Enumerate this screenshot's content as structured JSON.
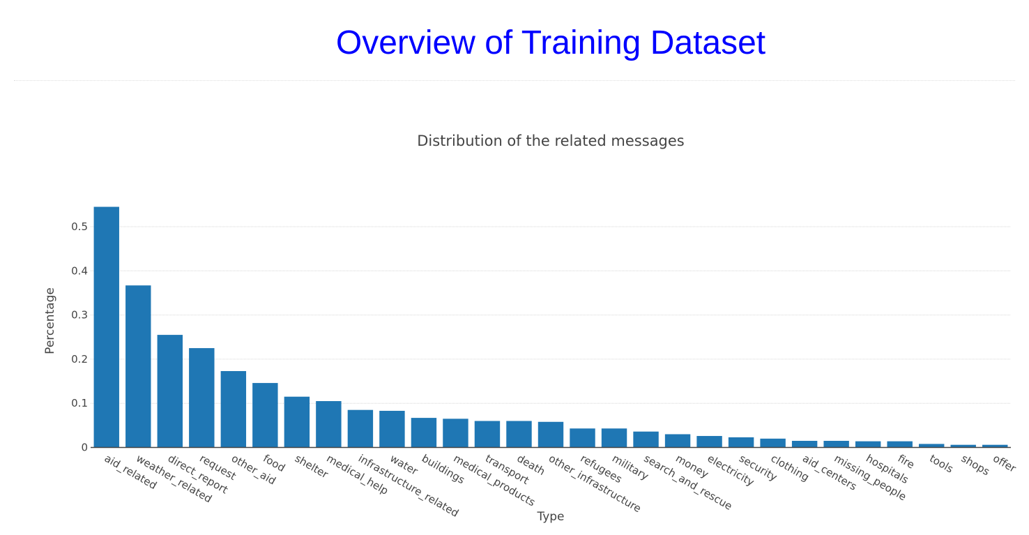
{
  "page": {
    "title": "Overview of Training Dataset",
    "title_color": "#0000ff"
  },
  "chart_data": {
    "type": "bar",
    "title": "Distribution of the related messages",
    "xlabel": "Type",
    "ylabel": "Percentage",
    "ylim": [
      0,
      0.55
    ],
    "yticks": [
      0,
      0.1,
      0.2,
      0.3,
      0.4,
      0.5
    ],
    "ytick_labels": [
      "0",
      "0.1",
      "0.2",
      "0.3",
      "0.4",
      "0.5"
    ],
    "grid": true,
    "bar_color": "#1f77b4",
    "categories": [
      "aid_related",
      "weather_related",
      "direct_report",
      "request",
      "other_aid",
      "food",
      "shelter",
      "medical_help",
      "infrastructure_related",
      "water",
      "buildings",
      "medical_products",
      "transport",
      "death",
      "other_infrastructure",
      "refugees",
      "military",
      "search_and_rescue",
      "money",
      "electricity",
      "security",
      "clothing",
      "aid_centers",
      "missing_people",
      "hospitals",
      "fire",
      "tools",
      "shops",
      "offer"
    ],
    "values": [
      0.545,
      0.367,
      0.255,
      0.225,
      0.173,
      0.146,
      0.115,
      0.105,
      0.085,
      0.083,
      0.067,
      0.065,
      0.06,
      0.06,
      0.058,
      0.043,
      0.043,
      0.036,
      0.03,
      0.026,
      0.023,
      0.02,
      0.015,
      0.015,
      0.014,
      0.014,
      0.008,
      0.006,
      0.006
    ]
  }
}
